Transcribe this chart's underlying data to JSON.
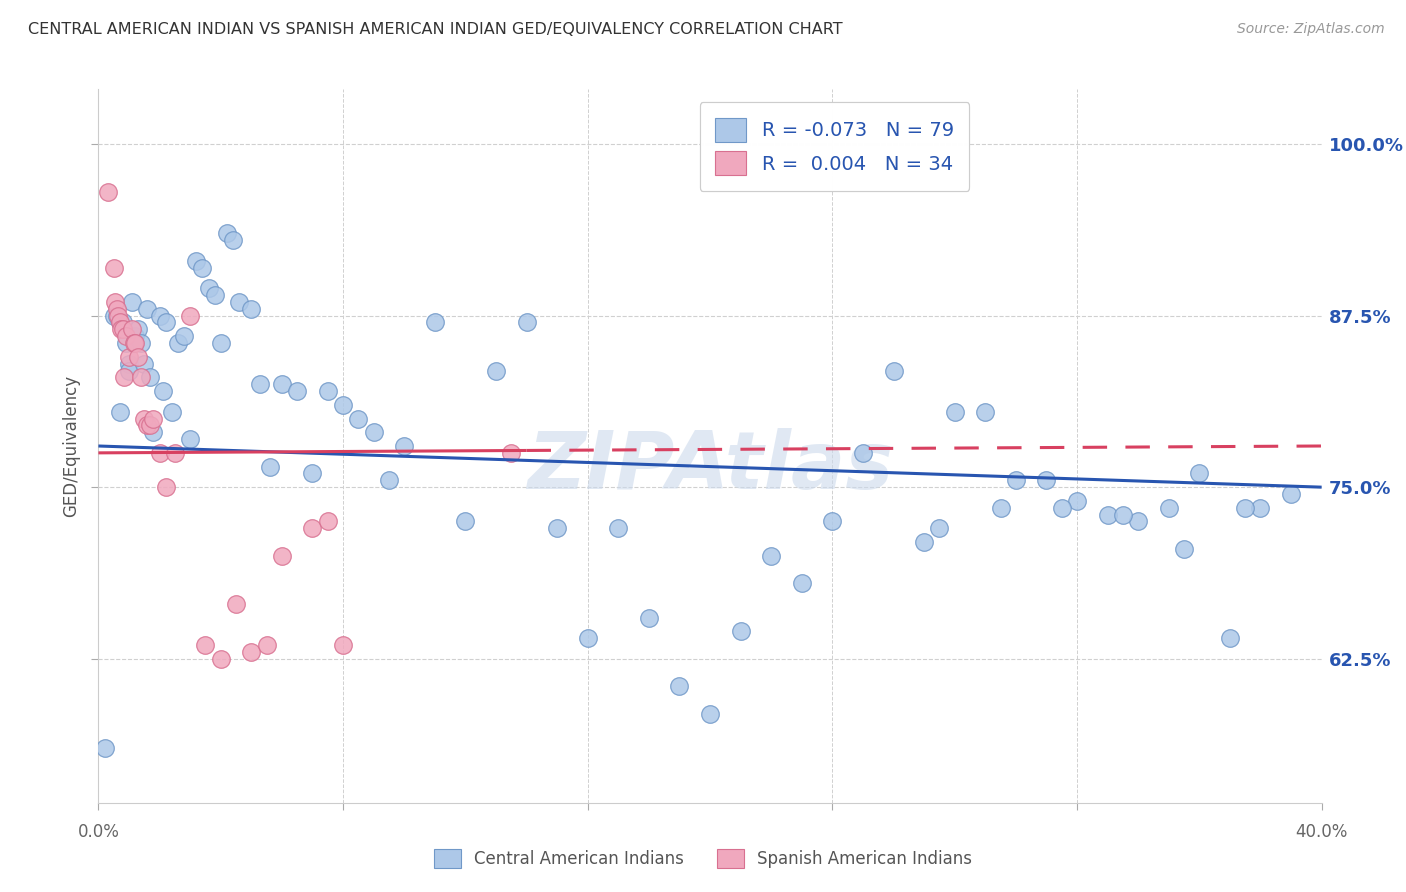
{
  "title": "CENTRAL AMERICAN INDIAN VS SPANISH AMERICAN INDIAN GED/EQUIVALENCY CORRELATION CHART",
  "source": "Source: ZipAtlas.com",
  "ylabel": "GED/Equivalency",
  "y_ticks": [
    62.5,
    75.0,
    87.5,
    100.0
  ],
  "y_tick_labels": [
    "62.5%",
    "75.0%",
    "87.5%",
    "100.0%"
  ],
  "x_range": [
    0.0,
    40.0
  ],
  "y_range": [
    52.0,
    104.0
  ],
  "blue_color": "#adc8e8",
  "pink_color": "#f0a8be",
  "blue_edge_color": "#7098c8",
  "pink_edge_color": "#d87090",
  "blue_line_color": "#2855b0",
  "pink_line_color": "#d84060",
  "label_color": "#2855b0",
  "watermark_text": "ZIPAtlas",
  "watermark_color": "#ccdaec",
  "legend_r1": "R = -0.073",
  "legend_n1": "N = 79",
  "legend_r2": "R =  0.004",
  "legend_n2": "N = 34",
  "blue_x": [
    0.2,
    0.5,
    0.6,
    0.7,
    0.7,
    0.8,
    0.9,
    1.0,
    1.0,
    1.1,
    1.2,
    1.3,
    1.4,
    1.5,
    1.6,
    1.7,
    1.8,
    2.0,
    2.1,
    2.2,
    2.4,
    2.6,
    2.8,
    3.0,
    3.2,
    3.4,
    3.6,
    3.8,
    4.0,
    4.2,
    4.4,
    4.6,
    5.0,
    5.3,
    5.6,
    6.0,
    6.5,
    7.0,
    7.5,
    8.0,
    8.5,
    9.0,
    9.5,
    10.0,
    11.0,
    12.0,
    13.0,
    14.0,
    15.0,
    16.0,
    17.0,
    18.0,
    19.0,
    20.0,
    21.0,
    22.0,
    23.0,
    24.0,
    25.0,
    26.0,
    27.0,
    28.0,
    29.0,
    30.0,
    31.0,
    32.0,
    33.0,
    34.0,
    35.0,
    36.0,
    37.0,
    38.0,
    39.0,
    27.5,
    29.5,
    31.5,
    33.5,
    35.5,
    37.5
  ],
  "blue_y": [
    56.0,
    87.5,
    87.5,
    87.0,
    80.5,
    87.0,
    85.5,
    84.0,
    83.5,
    88.5,
    86.0,
    86.5,
    85.5,
    84.0,
    88.0,
    83.0,
    79.0,
    87.5,
    82.0,
    87.0,
    80.5,
    85.5,
    86.0,
    78.5,
    91.5,
    91.0,
    89.5,
    89.0,
    85.5,
    93.5,
    93.0,
    88.5,
    88.0,
    82.5,
    76.5,
    82.5,
    82.0,
    76.0,
    82.0,
    81.0,
    80.0,
    79.0,
    75.5,
    78.0,
    87.0,
    72.5,
    83.5,
    87.0,
    72.0,
    64.0,
    72.0,
    65.5,
    60.5,
    58.5,
    64.5,
    70.0,
    68.0,
    72.5,
    77.5,
    83.5,
    71.0,
    80.5,
    80.5,
    75.5,
    75.5,
    74.0,
    73.0,
    72.5,
    73.5,
    76.0,
    64.0,
    73.5,
    74.5,
    72.0,
    73.5,
    73.5,
    73.0,
    70.5,
    73.5
  ],
  "pink_x": [
    0.3,
    0.5,
    0.55,
    0.6,
    0.65,
    0.7,
    0.75,
    0.8,
    0.85,
    0.9,
    1.0,
    1.1,
    1.15,
    1.2,
    1.3,
    1.4,
    1.5,
    1.6,
    1.7,
    1.8,
    2.0,
    2.2,
    2.5,
    3.0,
    3.5,
    4.0,
    4.5,
    5.0,
    5.5,
    6.0,
    7.0,
    7.5,
    8.0,
    13.5
  ],
  "pink_y": [
    96.5,
    91.0,
    88.5,
    88.0,
    87.5,
    87.0,
    86.5,
    86.5,
    83.0,
    86.0,
    84.5,
    86.5,
    85.5,
    85.5,
    84.5,
    83.0,
    80.0,
    79.5,
    79.5,
    80.0,
    77.5,
    75.0,
    77.5,
    87.5,
    63.5,
    62.5,
    66.5,
    63.0,
    63.5,
    70.0,
    72.0,
    72.5,
    63.5,
    77.5
  ],
  "blue_trend": [
    78.0,
    75.0
  ],
  "pink_trend": [
    77.5,
    78.0
  ],
  "cat1_label": "Central American Indians",
  "cat2_label": "Spanish American Indians"
}
